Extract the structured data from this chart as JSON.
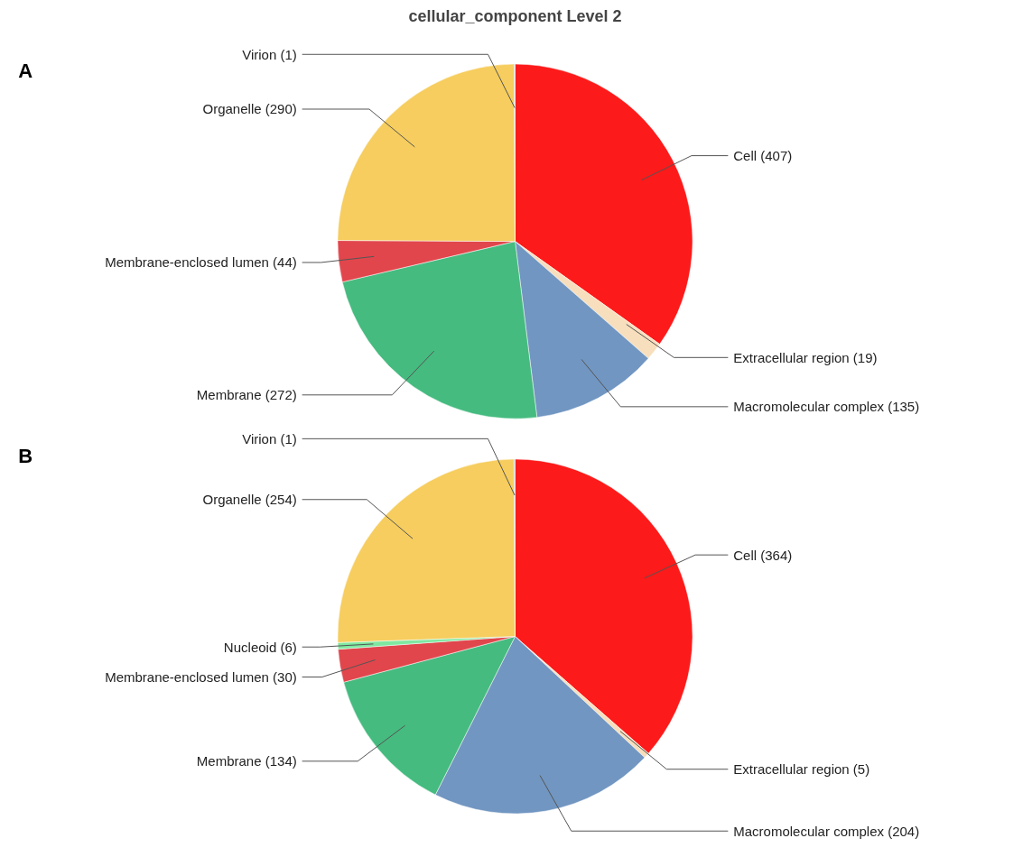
{
  "chart_data": [
    {
      "type": "pie",
      "title": "cellular_component Level 2",
      "annotations": [
        "A"
      ],
      "categories": [
        "Cell (407)",
        "Extracellular region (19)",
        "Macromolecular complex (135)",
        "Membrane (272)",
        "Membrane-enclosed lumen (44)",
        "Organelle (290)",
        "Virion (1)"
      ],
      "values": [
        407,
        19,
        135,
        272,
        44,
        290,
        1
      ],
      "colors": [
        "#fd1a1a",
        "#f7dfbd",
        "#7196c1",
        "#45bb7f",
        "#e1464c",
        "#f6cd5e",
        "#b3b3b3"
      ]
    },
    {
      "type": "pie",
      "annotations": [
        "B"
      ],
      "categories": [
        "Cell (364)",
        "Extracellular region (5)",
        "Macromolecular complex (204)",
        "Membrane (134)",
        "Membrane-enclosed lumen (30)",
        "Nucleoid (6)",
        "Organelle (254)",
        "Virion (1)"
      ],
      "values": [
        364,
        5,
        204,
        134,
        30,
        6,
        254,
        1
      ],
      "colors": [
        "#fd1a1a",
        "#f7dfbd",
        "#7196c1",
        "#45bb7f",
        "#e1464c",
        "#7fe8a0",
        "#f6cd5e",
        "#b3b3b3"
      ]
    }
  ]
}
